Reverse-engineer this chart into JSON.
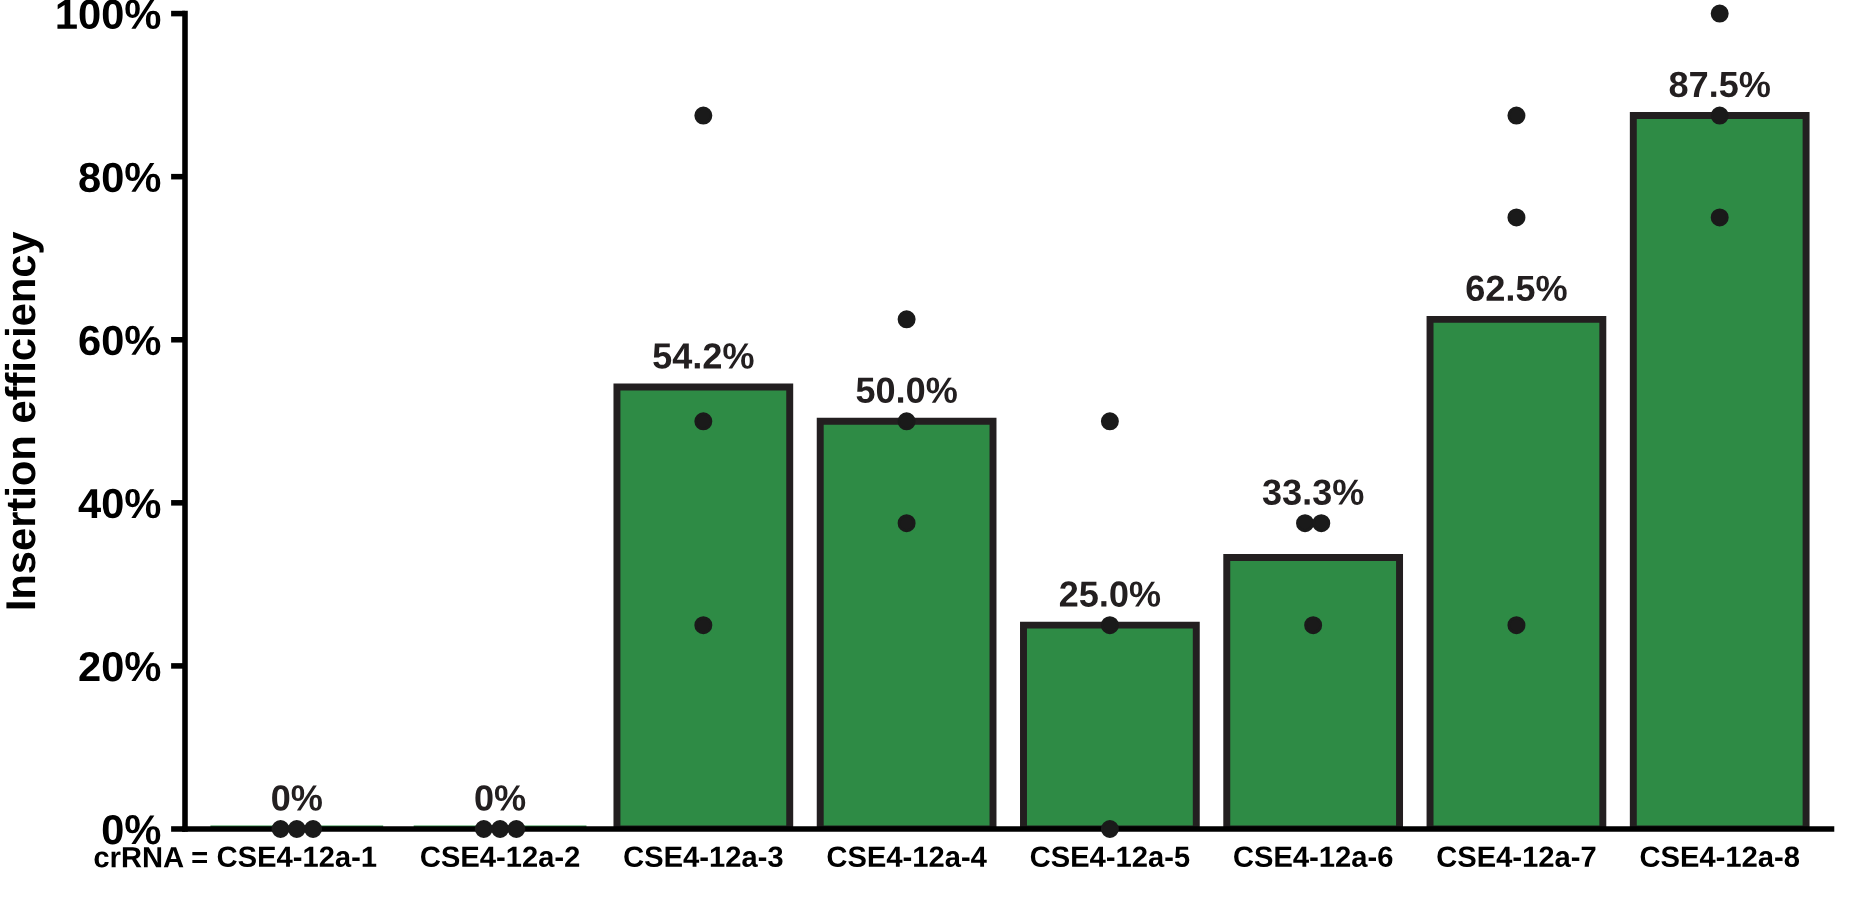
{
  "chart_data": {
    "type": "bar",
    "xlabel": "crRNA =",
    "ylabel": "Insertion efficiency",
    "categories": [
      "CSE4-12a-1",
      "CSE4-12a-2",
      "CSE4-12a-3",
      "CSE4-12a-4",
      "CSE4-12a-5",
      "CSE4-12a-6",
      "CSE4-12a-7",
      "CSE4-12a-8"
    ],
    "ylim": [
      0,
      100
    ],
    "yticks": [
      {
        "value": 0,
        "label": "0%"
      },
      {
        "value": 20,
        "label": "20%"
      },
      {
        "value": 40,
        "label": "40%"
      },
      {
        "value": 60,
        "label": "60%"
      },
      {
        "value": 80,
        "label": "80%"
      },
      {
        "value": 100,
        "label": "100%"
      }
    ],
    "grid": false,
    "legend": false,
    "series": [
      {
        "color": "#2e8b45",
        "values": [
          0,
          0,
          54.2,
          50.0,
          25.0,
          33.3,
          62.5,
          87.5
        ],
        "value_labels": [
          "0%",
          "0%",
          "54.2%",
          "50.0%",
          "25.0%",
          "33.3%",
          "62.5%",
          "87.5%"
        ]
      },
      {
        "type": "scatter",
        "color": "#1a1a1a",
        "marker": "circle",
        "x": [
          "CSE4-12a-1",
          "CSE4-12a-1",
          "CSE4-12a-1",
          "CSE4-12a-2",
          "CSE4-12a-2",
          "CSE4-12a-2",
          "CSE4-12a-3",
          "CSE4-12a-3",
          "CSE4-12a-3",
          "CSE4-12a-4",
          "CSE4-12a-4",
          "CSE4-12a-4",
          "CSE4-12a-5",
          "CSE4-12a-5",
          "CSE4-12a-5",
          "CSE4-12a-6",
          "CSE4-12a-6",
          "CSE4-12a-6",
          "CSE4-12a-7",
          "CSE4-12a-7",
          "CSE4-12a-7",
          "CSE4-12a-8",
          "CSE4-12a-8",
          "CSE4-12a-8"
        ],
        "values": [
          0,
          0,
          0,
          0,
          0,
          0,
          87.5,
          50,
          25,
          62.5,
          50,
          37.5,
          50,
          25,
          0,
          37.5,
          37.5,
          25,
          87.5,
          75,
          25,
          100,
          87.5,
          75
        ]
      }
    ]
  }
}
